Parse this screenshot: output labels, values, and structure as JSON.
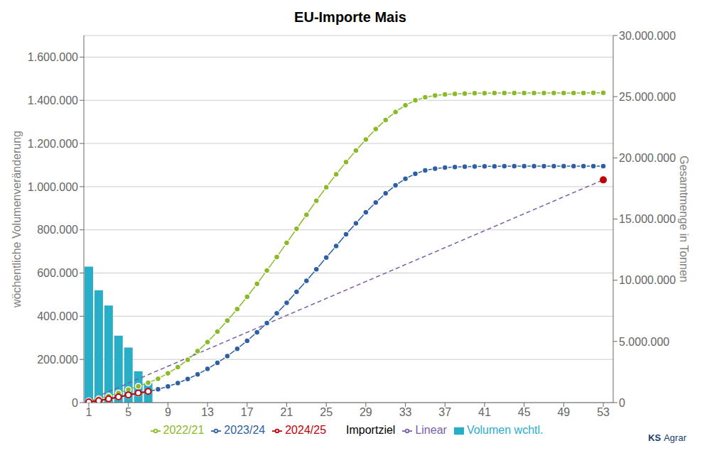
{
  "chart_data": {
    "type": "bar",
    "title": "EU-Importe Mais",
    "y_label": "wöchentliche Volumenveränderung",
    "y2_label": "Gesamtmenge in Tonnen",
    "xlim": [
      0.5,
      54
    ],
    "xticks": [
      1,
      5,
      9,
      13,
      17,
      21,
      25,
      29,
      33,
      37,
      41,
      45,
      49,
      53
    ],
    "ylim": [
      0,
      1700000
    ],
    "yticks": [
      0,
      {
        "value": 200000,
        "label": "200.000"
      },
      {
        "value": 400000,
        "label": "400.000"
      },
      {
        "value": 600000,
        "label": "600.000"
      },
      {
        "value": 800000,
        "label": "800.000"
      },
      {
        "value": 1000000,
        "label": "1.000.000"
      },
      {
        "value": 1200000,
        "label": "1.200.000"
      },
      {
        "value": 1400000,
        "label": "1.400.000"
      },
      {
        "value": 1600000,
        "label": "1.600.000"
      }
    ],
    "y2lim": [
      0,
      30000000
    ],
    "y2ticks": [
      0,
      {
        "value": 5000000,
        "label": "5.000.000"
      },
      {
        "value": 10000000,
        "label": "10.000.000"
      },
      {
        "value": 15000000,
        "label": "15.000.000"
      },
      {
        "value": 20000000,
        "label": "20.000.000"
      },
      {
        "value": 25000000,
        "label": "25.000.000"
      },
      {
        "value": 30000000,
        "label": "30.000.000"
      }
    ],
    "grid": true,
    "legend": "bottom",
    "annotations": [
      "KS",
      "Agrar"
    ],
    "series": [
      {
        "name": "Volumen wchtl.",
        "type": "bar",
        "color": "#29aec8",
        "x": [
          1,
          2,
          3,
          4,
          5,
          6,
          7
        ],
        "values": [
          630000,
          520000,
          450000,
          310000,
          255000,
          145000,
          90000
        ]
      },
      {
        "name": "2022/21",
        "type": "line",
        "axis": "y2",
        "color": "#8aba2a",
        "marker": "circle",
        "x": [
          1,
          2,
          3,
          4,
          5,
          6,
          7,
          8,
          9,
          10,
          11,
          12,
          13,
          14,
          15,
          16,
          17,
          18,
          19,
          20,
          21,
          22,
          23,
          24,
          25,
          26,
          27,
          28,
          29,
          30,
          31,
          32,
          33,
          34,
          35,
          36,
          37,
          38,
          39,
          40,
          41,
          42,
          43,
          44,
          45,
          46,
          47,
          48,
          49,
          50,
          51,
          52,
          53
        ],
        "values": [
          150000,
          320000,
          530000,
          790000,
          1060000,
          1340000,
          1620000,
          1950000,
          2400000,
          2900000,
          3500000,
          4200000,
          4950000,
          5800000,
          6700000,
          7650000,
          8650000,
          9700000,
          10800000,
          11900000,
          13050000,
          14200000,
          15350000,
          16500000,
          17600000,
          18650000,
          19650000,
          20600000,
          21500000,
          22350000,
          23100000,
          23750000,
          24300000,
          24700000,
          24950000,
          25100000,
          25180000,
          25230000,
          25260000,
          25280000,
          25290000,
          25295000,
          25298000,
          25300000,
          25301000,
          25302000,
          25303000,
          25304000,
          25305000,
          25306000,
          25307000,
          25308000,
          25309000
        ]
      },
      {
        "name": "2023/24",
        "type": "line",
        "axis": "y2",
        "color": "#2e5fa3",
        "marker": "circle",
        "x": [
          1,
          2,
          3,
          4,
          5,
          6,
          7,
          8,
          9,
          10,
          11,
          12,
          13,
          14,
          15,
          16,
          17,
          18,
          19,
          20,
          21,
          22,
          23,
          24,
          25,
          26,
          27,
          28,
          29,
          30,
          31,
          32,
          33,
          34,
          35,
          36,
          37,
          38,
          39,
          40,
          41,
          42,
          43,
          44,
          45,
          46,
          47,
          48,
          49,
          50,
          51,
          52,
          53
        ],
        "values": [
          80000,
          170000,
          290000,
          440000,
          600000,
          750000,
          900000,
          1090000,
          1320000,
          1600000,
          1930000,
          2310000,
          2750000,
          3250000,
          3800000,
          4400000,
          5050000,
          5750000,
          6500000,
          7300000,
          8150000,
          9050000,
          9950000,
          10900000,
          11850000,
          12800000,
          13750000,
          14650000,
          15550000,
          16350000,
          17100000,
          17750000,
          18300000,
          18700000,
          18980000,
          19120000,
          19200000,
          19250000,
          19280000,
          19300000,
          19310000,
          19315000,
          19318000,
          19320000,
          19321000,
          19322000,
          19323000,
          19324000,
          19325000,
          19325500,
          19326000,
          19326500,
          19327000
        ]
      },
      {
        "name": "2024/25",
        "type": "line",
        "axis": "y2",
        "color": "#c0000a",
        "marker": "circle_open",
        "x": [
          1,
          2,
          3,
          4,
          5,
          6,
          7
        ],
        "values": [
          60000,
          160000,
          300000,
          460000,
          630000,
          780000,
          910000
        ]
      },
      {
        "name": "Importziel",
        "type": "scatter",
        "axis": "y2",
        "color": "#c0000a",
        "marker": "circle",
        "x": [
          53
        ],
        "values": [
          18200000
        ]
      },
      {
        "name": "Linear",
        "type": "line",
        "axis": "y2",
        "color": "#7b5ea7",
        "line_style": "dashed",
        "x": [
          1,
          53
        ],
        "values": [
          200000,
          18200000
        ]
      }
    ]
  }
}
